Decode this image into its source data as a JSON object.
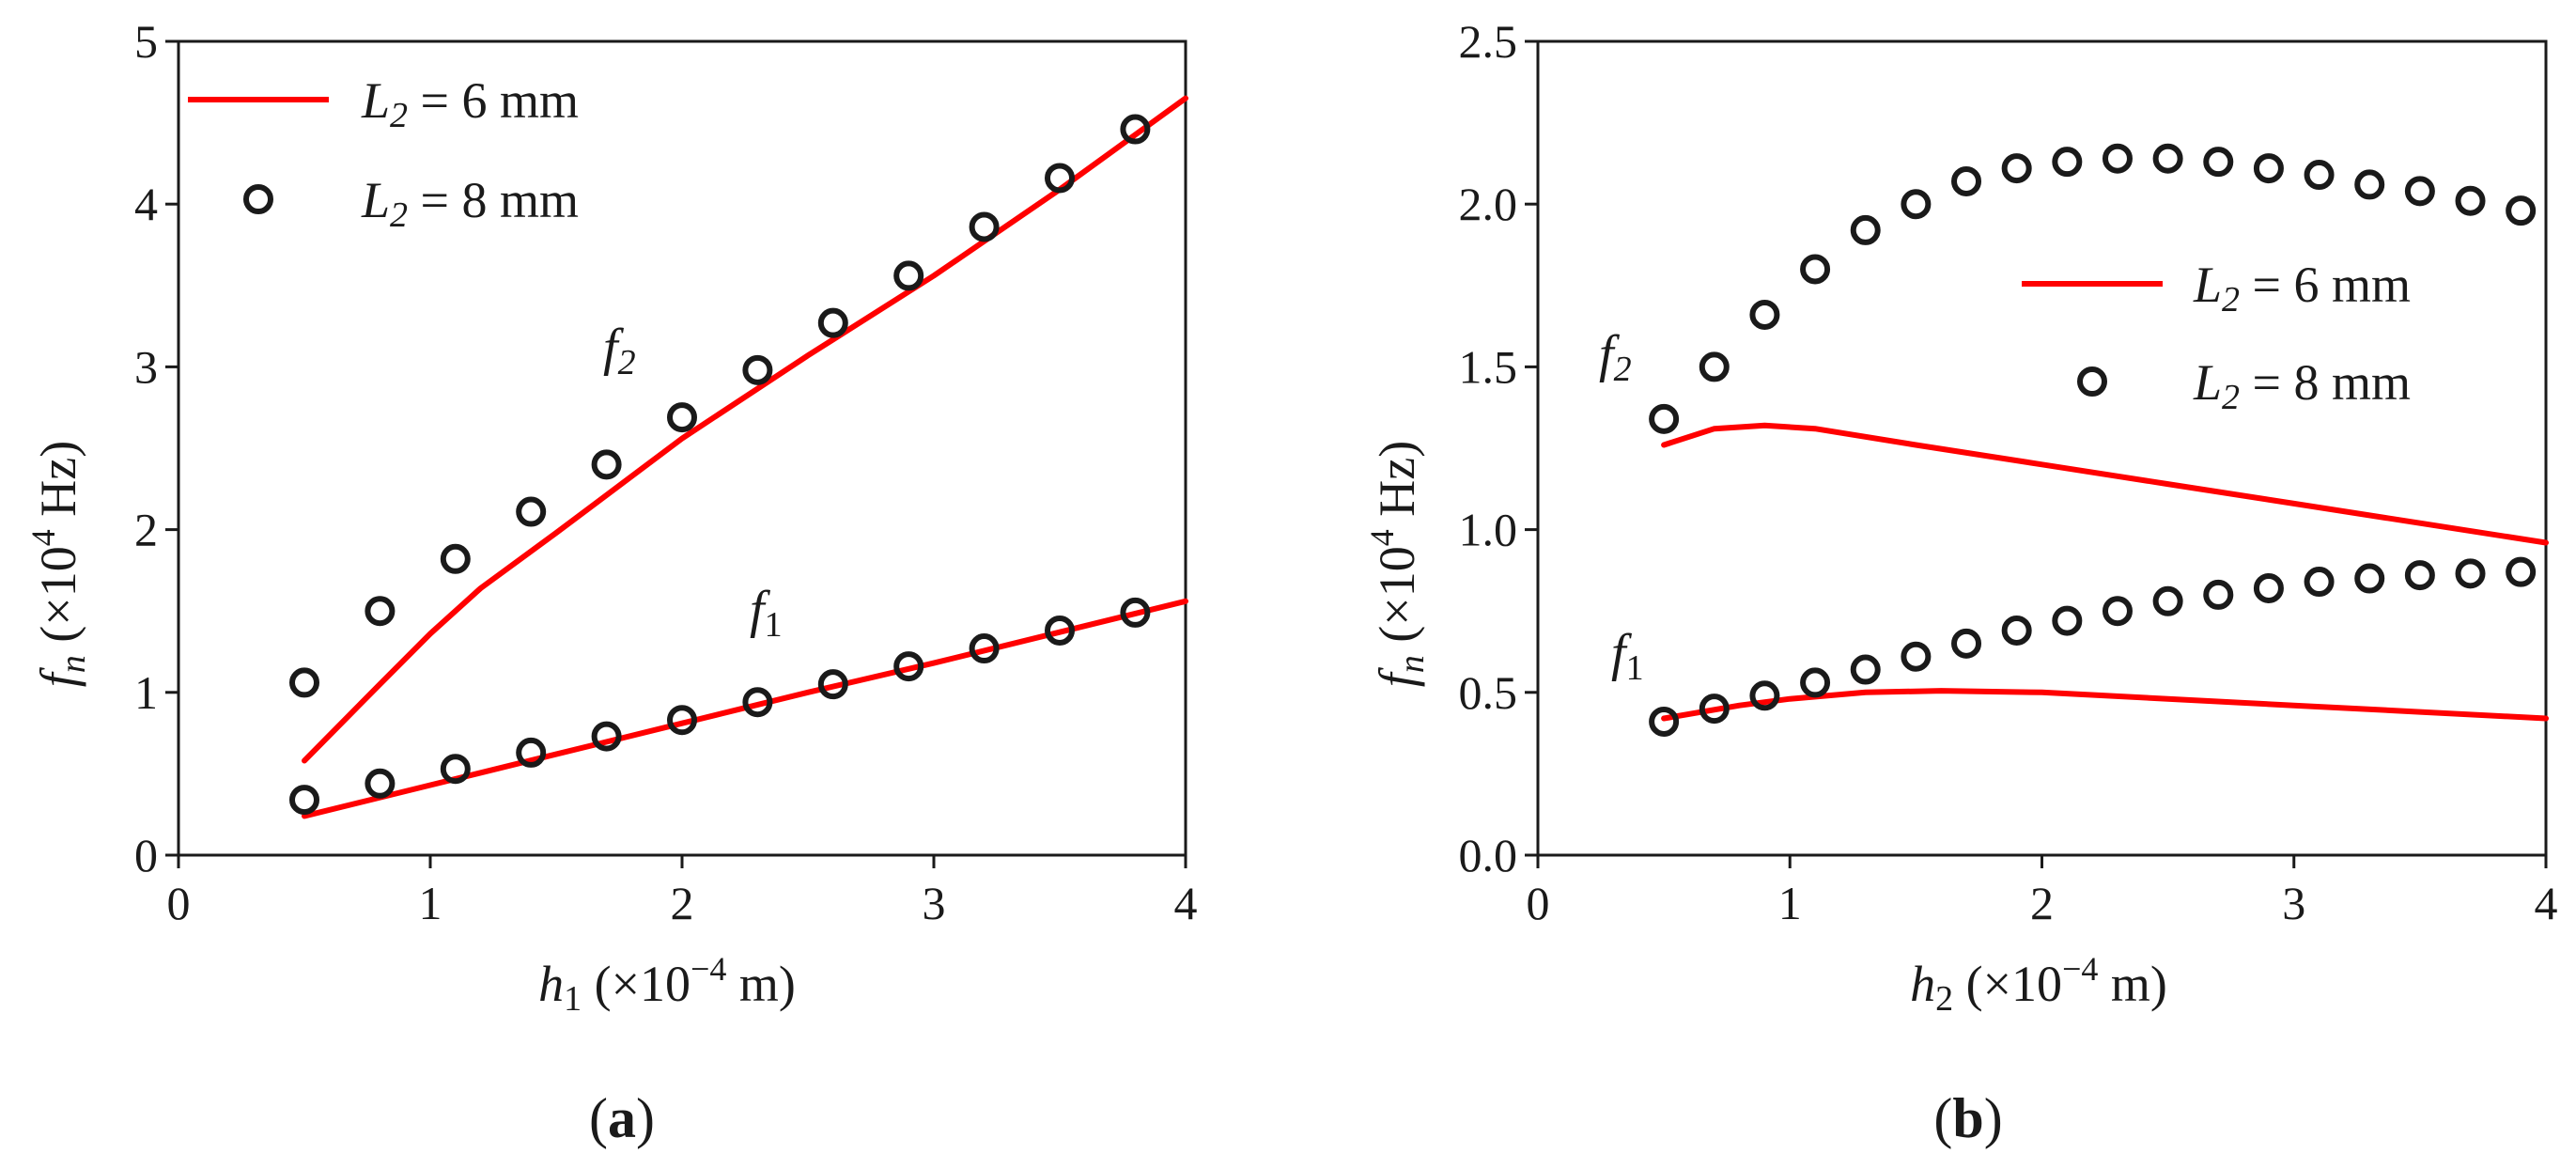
{
  "colors": {
    "line": "#ff0000",
    "marker": "#1a1a1a",
    "axis": "#1a1a1a"
  },
  "chart_data": [
    {
      "type": "line",
      "panel_label": "(a)",
      "xlabel": "h1 (×10^-4 m)",
      "ylabel": "fn (×10^4 Hz)",
      "xlim": [
        0,
        4
      ],
      "ylim": [
        0,
        5
      ],
      "xticks": [
        "0",
        "1",
        "2",
        "3",
        "4"
      ],
      "yticks": [
        "0",
        "1",
        "2",
        "3",
        "4",
        "5"
      ],
      "legend_position": "top-left",
      "legend": [
        "L2 = 6 mm",
        "L2 = 8 mm"
      ],
      "curve_labels": [
        "f2",
        "f1"
      ],
      "series": [
        {
          "name": "L2 = 6 mm",
          "mode": "line",
          "curve": "f2",
          "x": [
            0.5,
            0.8,
            1.0,
            1.2,
            1.5,
            2.0,
            2.5,
            3.0,
            3.5,
            4.0
          ],
          "y": [
            0.58,
            1.05,
            1.36,
            1.64,
            1.98,
            2.56,
            3.07,
            3.56,
            4.09,
            4.65
          ]
        },
        {
          "name": "L2 = 8 mm",
          "mode": "markers",
          "curve": "f2",
          "x": [
            0.5,
            0.8,
            1.1,
            1.4,
            1.7,
            2.0,
            2.3,
            2.6,
            2.9,
            3.2,
            3.5,
            3.8
          ],
          "y": [
            1.06,
            1.5,
            1.82,
            2.11,
            2.4,
            2.69,
            2.98,
            3.27,
            3.56,
            3.86,
            4.16,
            4.46
          ]
        },
        {
          "name": "L2 = 6 mm",
          "mode": "line",
          "curve": "f1",
          "x": [
            0.5,
            1.0,
            1.5,
            2.0,
            2.5,
            3.0,
            3.5,
            4.0
          ],
          "y": [
            0.24,
            0.43,
            0.62,
            0.81,
            1.0,
            1.18,
            1.37,
            1.56
          ]
        },
        {
          "name": "L2 = 8 mm",
          "mode": "markers",
          "curve": "f1",
          "x": [
            0.5,
            0.8,
            1.1,
            1.4,
            1.7,
            2.0,
            2.3,
            2.6,
            2.9,
            3.2,
            3.5,
            3.8
          ],
          "y": [
            0.34,
            0.44,
            0.53,
            0.63,
            0.73,
            0.83,
            0.94,
            1.05,
            1.16,
            1.27,
            1.38,
            1.49
          ]
        }
      ]
    },
    {
      "type": "line",
      "panel_label": "(b)",
      "xlabel": "h2 (×10^-4 m)",
      "ylabel": "fn (×10^4 Hz)",
      "xlim": [
        0,
        4
      ],
      "ylim": [
        0,
        2.5
      ],
      "xticks": [
        "0",
        "1",
        "2",
        "3",
        "4"
      ],
      "yticks": [
        "0.0",
        "0.5",
        "1.0",
        "1.5",
        "2.0",
        "2.5"
      ],
      "legend_position": "right",
      "legend": [
        "L2 = 6 mm",
        "L2 = 8 mm"
      ],
      "curve_labels": [
        "f2",
        "f1"
      ],
      "series": [
        {
          "name": "L2 = 6 mm",
          "mode": "line",
          "curve": "f2",
          "x": [
            0.5,
            0.7,
            0.9,
            1.1,
            1.5,
            2.0,
            2.5,
            3.0,
            3.5,
            4.0
          ],
          "y": [
            1.26,
            1.31,
            1.32,
            1.31,
            1.26,
            1.2,
            1.14,
            1.08,
            1.02,
            0.96
          ]
        },
        {
          "name": "L2 = 8 mm",
          "mode": "markers",
          "curve": "f2",
          "x": [
            0.5,
            0.7,
            0.9,
            1.1,
            1.3,
            1.5,
            1.7,
            1.9,
            2.1,
            2.3,
            2.5,
            2.7,
            2.9,
            3.1,
            3.3,
            3.5,
            3.7,
            3.9
          ],
          "y": [
            1.34,
            1.5,
            1.66,
            1.8,
            1.92,
            2.0,
            2.07,
            2.11,
            2.13,
            2.14,
            2.14,
            2.13,
            2.11,
            2.09,
            2.06,
            2.04,
            2.01,
            1.98
          ]
        },
        {
          "name": "L2 = 6 mm",
          "mode": "line",
          "curve": "f1",
          "x": [
            0.5,
            0.8,
            1.0,
            1.3,
            1.6,
            2.0,
            2.5,
            3.0,
            3.5,
            4.0
          ],
          "y": [
            0.42,
            0.46,
            0.48,
            0.5,
            0.505,
            0.5,
            0.48,
            0.46,
            0.44,
            0.42
          ]
        },
        {
          "name": "L2 = 8 mm",
          "mode": "markers",
          "curve": "f1",
          "x": [
            0.5,
            0.7,
            0.9,
            1.1,
            1.3,
            1.5,
            1.7,
            1.9,
            2.1,
            2.3,
            2.5,
            2.7,
            2.9,
            3.1,
            3.3,
            3.5,
            3.7,
            3.9
          ],
          "y": [
            0.41,
            0.45,
            0.49,
            0.53,
            0.57,
            0.61,
            0.65,
            0.69,
            0.72,
            0.75,
            0.78,
            0.8,
            0.82,
            0.84,
            0.85,
            0.86,
            0.865,
            0.87
          ]
        }
      ]
    }
  ]
}
